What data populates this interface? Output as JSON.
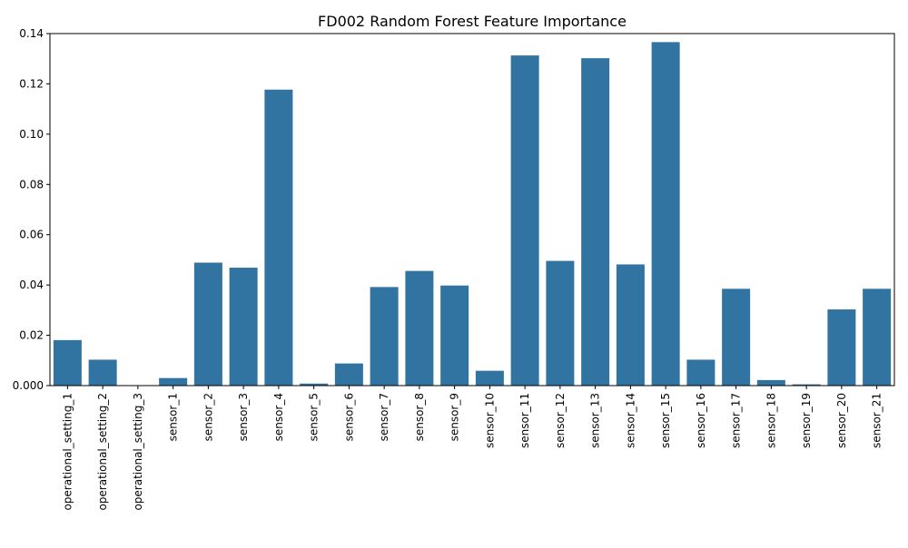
{
  "chart_data": {
    "type": "bar",
    "title": "FD002 Random Forest Feature Importance",
    "xlabel": "",
    "ylabel": "",
    "ylim": [
      0,
      0.14
    ],
    "yticks": [
      "0.000",
      "0.02",
      "0.04",
      "0.06",
      "0.08",
      "0.10",
      "0.12",
      "0.14"
    ],
    "ytick_values": [
      0,
      0.02,
      0.04,
      0.06,
      0.08,
      0.1,
      0.12,
      0.14
    ],
    "bar_color": "#3274a1",
    "grid": false,
    "categories": [
      "operational_setting_1",
      "operational_setting_2",
      "operational_setting_3",
      "sensor_1",
      "sensor_2",
      "sensor_3",
      "sensor_4",
      "sensor_5",
      "sensor_6",
      "sensor_7",
      "sensor_8",
      "sensor_9",
      "sensor_10",
      "sensor_11",
      "sensor_12",
      "sensor_13",
      "sensor_14",
      "sensor_15",
      "sensor_16",
      "sensor_17",
      "sensor_18",
      "sensor_19",
      "sensor_20",
      "sensor_21"
    ],
    "values": [
      0.0181,
      0.0103,
      0.0,
      0.003,
      0.0489,
      0.0469,
      0.1177,
      0.0008,
      0.0088,
      0.0392,
      0.0456,
      0.0398,
      0.0059,
      0.1313,
      0.0496,
      0.1302,
      0.0482,
      0.1366,
      0.0103,
      0.0385,
      0.0022,
      0.0005,
      0.0303,
      0.0385
    ]
  }
}
